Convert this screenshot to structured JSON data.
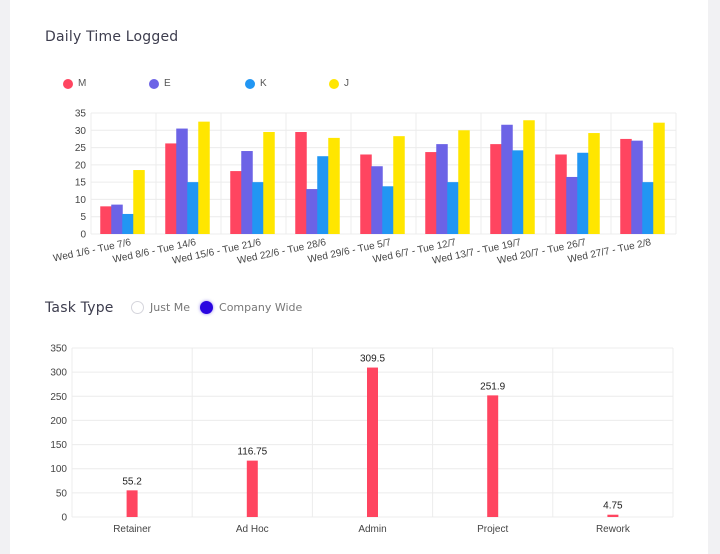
{
  "titles": {
    "daily": "Daily Time Logged",
    "task": "Task Type"
  },
  "radio": {
    "just_me": "Just Me",
    "company_wide": "Company Wide",
    "selected": "company_wide"
  },
  "colors": {
    "M": "#ff4560",
    "E": "#6c63e6",
    "K": "#2196f3",
    "J": "#ffe600",
    "task_bar": "#ff4560"
  },
  "chart_data": [
    {
      "type": "bar",
      "title": "Daily Time Logged",
      "categories": [
        "Wed 1/6 - Tue 7/6",
        "Wed 8/6 - Tue 14/6",
        "Wed 15/6 - Tue 21/6",
        "Wed 22/6 - Tue 28/6",
        "Wed 29/6 - Tue 5/7",
        "Wed 6/7 - Tue 12/7",
        "Wed 13/7 - Tue 19/7",
        "Wed 20/7 - Tue 26/7",
        "Wed 27/7 - Tue 2/8"
      ],
      "series": [
        {
          "name": "M",
          "values": [
            8,
            26.2,
            18.2,
            29.5,
            23,
            23.7,
            26,
            23,
            27.5
          ]
        },
        {
          "name": "E",
          "values": [
            8.5,
            30.5,
            24,
            13,
            19.6,
            26,
            31.6,
            16.5,
            27
          ]
        },
        {
          "name": "K",
          "values": [
            5.8,
            15,
            15,
            22.5,
            13.8,
            15,
            24.2,
            23.5,
            15
          ]
        },
        {
          "name": "J",
          "values": [
            18.5,
            32.5,
            29.5,
            27.8,
            28.3,
            30,
            32.9,
            29.2,
            32.2
          ]
        }
      ],
      "yticks": [
        0,
        5,
        10,
        15,
        20,
        25,
        30,
        35
      ],
      "ylim": [
        0,
        35
      ],
      "legend": "top-left",
      "grid": true
    },
    {
      "type": "bar",
      "title": "Task Type",
      "categories": [
        "Retainer",
        "Ad Hoc",
        "Admin",
        "Project",
        "Rework"
      ],
      "values": [
        55.2,
        116.75,
        309.5,
        251.9,
        4.75
      ],
      "data_labels": [
        "55.2",
        "116.75",
        "309.5",
        "251.9",
        "4.75"
      ],
      "yticks": [
        0,
        50,
        100,
        150,
        200,
        250,
        300,
        350
      ],
      "ylim": [
        0,
        350
      ],
      "grid": true
    }
  ]
}
